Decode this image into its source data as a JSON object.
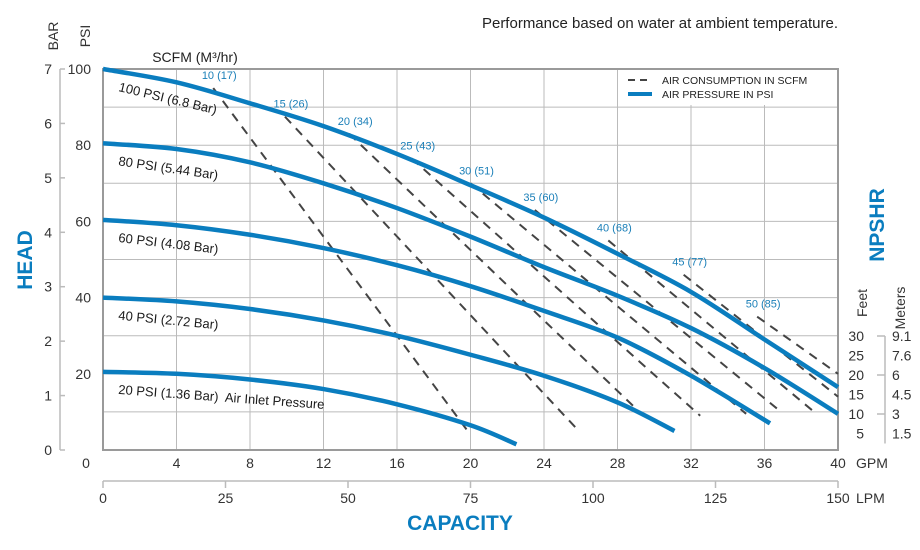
{
  "chart_data": {
    "type": "line",
    "title": "",
    "subtitle": "Performance based on water at ambient temperature.",
    "xlabel": "CAPACITY",
    "ylabel": "HEAD",
    "right_label": "NPSHR",
    "scfm_title": "SCFM (M³/hr)",
    "x_axis_primary": {
      "unit": "GPM",
      "range": [
        0,
        40
      ],
      "ticks": [
        "0",
        "4",
        "8",
        "12",
        "16",
        "20",
        "24",
        "28",
        "32",
        "36",
        "40"
      ]
    },
    "x_axis_secondary": {
      "unit": "LPM",
      "range": [
        0,
        150
      ],
      "ticks": [
        "0",
        "25",
        "50",
        "75",
        "100",
        "125",
        "150"
      ]
    },
    "y_axis_primary": {
      "unit": "PSI",
      "range": [
        0,
        100
      ],
      "ticks": [
        "20",
        "40",
        "60",
        "80",
        "100"
      ]
    },
    "y_axis_secondary": {
      "unit": "BAR",
      "range": [
        0,
        7
      ],
      "ticks": [
        "0",
        "1",
        "2",
        "3",
        "4",
        "5",
        "6",
        "7"
      ]
    },
    "npshr_axis": {
      "feet_unit": "Feet",
      "meters_unit": "Meters",
      "feet_ticks": [
        "30",
        "25",
        "20",
        "15",
        "10",
        "5"
      ],
      "meters_ticks": [
        "9.1",
        "7.6",
        "6",
        "4.5",
        "3",
        "1.5"
      ]
    },
    "grid": true,
    "legend": {
      "placement": "top-right",
      "entries": [
        {
          "label": "AIR CONSUMPTION IN SCFM",
          "style": "dashed"
        },
        {
          "label": "AIR PRESSURE IN PSI",
          "style": "solid"
        }
      ]
    },
    "colors": {
      "pressure": "#0a7dbf",
      "air": "#444444",
      "grid": "#bbbbbb",
      "accent": "#0a7dbf"
    },
    "series": [
      {
        "name": "100 PSI (6.8 Bar)",
        "x": [
          0,
          4,
          8,
          12,
          16,
          20,
          24,
          28,
          32,
          36,
          40
        ],
        "y": [
          100,
          96.5,
          91,
          85,
          77.7,
          69.5,
          61,
          51.5,
          41.5,
          29,
          16.5
        ]
      },
      {
        "name": "80 PSI (5.44 Bar)",
        "x": [
          0,
          4,
          8,
          12,
          16,
          20,
          24,
          28,
          32,
          36,
          40
        ],
        "y": [
          80.5,
          79,
          75.5,
          70,
          63.5,
          56,
          48,
          40.5,
          32,
          21.5,
          9.5
        ]
      },
      {
        "name": "60 PSI (4.08 Bar)",
        "x": [
          0,
          4,
          8,
          12,
          16,
          20,
          24,
          28,
          32,
          36.3
        ],
        "y": [
          60.4,
          59,
          56.5,
          53,
          48.5,
          43,
          36.5,
          29.5,
          19.5,
          7
        ]
      },
      {
        "name": "40 PSI (2.72 Bar)",
        "x": [
          0,
          4,
          8,
          12,
          16,
          20,
          24,
          28,
          31.1
        ],
        "y": [
          40,
          39,
          37,
          34,
          30,
          25,
          19.5,
          12.5,
          5
        ]
      },
      {
        "name": "20 PSI (1.36 Bar)  Air Inlet Pressure",
        "x": [
          0,
          4,
          8,
          12,
          16,
          20,
          22.5
        ],
        "y": [
          20.5,
          20,
          18.5,
          16,
          12,
          6.5,
          1.5
        ]
      }
    ],
    "air_consumption": [
      {
        "label": "10 (17)",
        "from": [
          6.0,
          95
        ],
        "to": [
          20.0,
          4
        ]
      },
      {
        "label": "15 (26)",
        "from": [
          9.9,
          87.5
        ],
        "to": [
          25.7,
          6
        ]
      },
      {
        "label": "20 (34)",
        "from": [
          13.4,
          83
        ],
        "to": [
          29.3,
          9.5
        ]
      },
      {
        "label": "25 (43)",
        "from": [
          16.8,
          76.5
        ],
        "to": [
          32.5,
          9
        ]
      },
      {
        "label": "30 (51)",
        "from": [
          20.0,
          70
        ],
        "to": [
          35.0,
          9.5
        ]
      },
      {
        "label": "35 (60)",
        "from": [
          23.5,
          63
        ],
        "to": [
          36.9,
          10
        ]
      },
      {
        "label": "40 (68)",
        "from": [
          27.5,
          55
        ],
        "to": [
          38.7,
          10
        ]
      },
      {
        "label": "45 (77)",
        "from": [
          31.6,
          46
        ],
        "to": [
          40,
          14
        ]
      },
      {
        "label": "50 (85)",
        "from": [
          35.6,
          35
        ],
        "to": [
          40,
          20
        ]
      }
    ]
  }
}
